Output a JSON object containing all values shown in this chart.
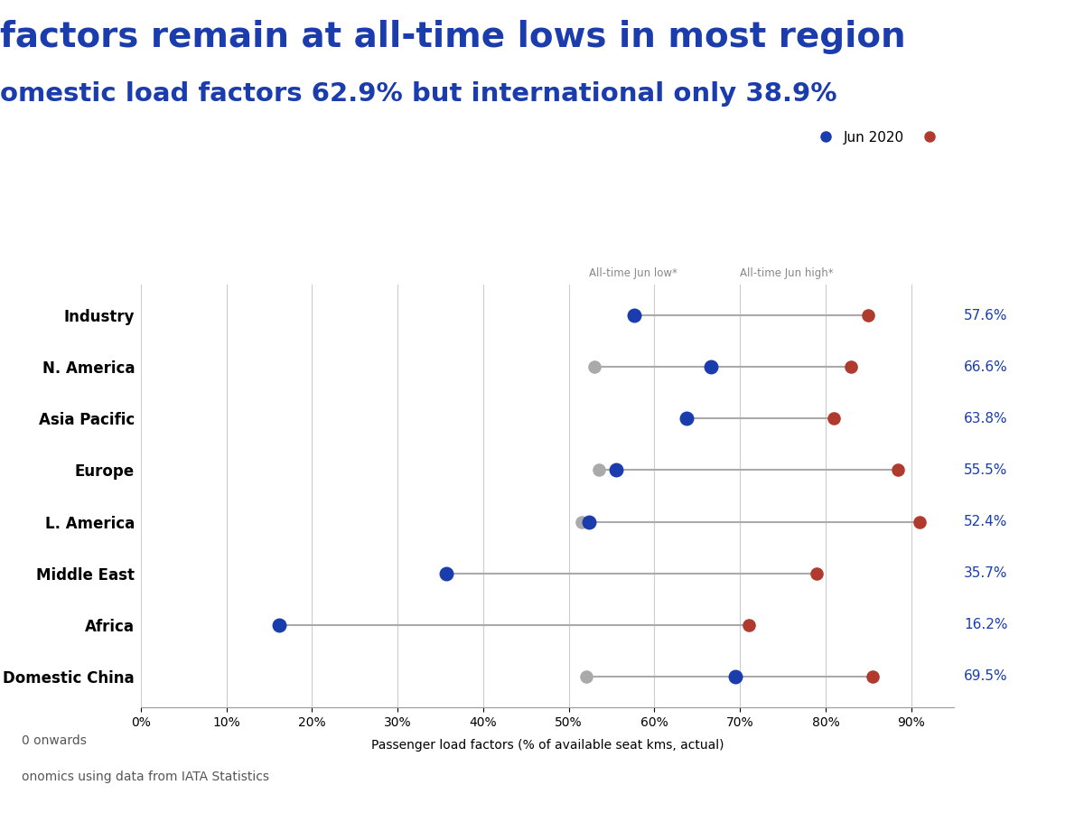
{
  "title_line1": "factors remain at all-time lows in most region",
  "title_line2": "omestic load factors 62.9% but international only 38.9%",
  "xlabel": "Passenger load factors (% of available seat kms, actual)",
  "footnote1": "0 onwards",
  "footnote2": "onomics using data from IATA Statistics",
  "legend_blue": "Jun 2020",
  "categories": [
    "Industry",
    "N. America",
    "Asia Pacific",
    "Europe",
    "L. America",
    "Middle East",
    "Africa",
    "Domestic China"
  ],
  "jun2020": [
    57.6,
    66.6,
    63.8,
    55.5,
    52.4,
    35.7,
    16.2,
    69.5
  ],
  "alltime_low": [
    57.6,
    53.0,
    63.8,
    53.5,
    51.5,
    35.7,
    16.2,
    52.0
  ],
  "alltime_high": [
    85.0,
    83.0,
    81.0,
    88.5,
    91.0,
    79.0,
    71.0,
    85.5
  ],
  "right_labels": [
    "57.6%",
    "66.6%",
    "63.8%",
    "55.5%",
    "52.4%",
    "35.7%",
    "16.2%",
    "69.5%"
  ],
  "annotation_low_text": "All-time Jun low*",
  "annotation_high_text": "All-time Jun high*",
  "xlim": [
    0.0,
    0.95
  ],
  "xticks": [
    0.0,
    0.1,
    0.2,
    0.3,
    0.4,
    0.5,
    0.6,
    0.7,
    0.8,
    0.9
  ],
  "xtick_labels": [
    "0%",
    "10%",
    "20%",
    "30%",
    "40%",
    "50%",
    "60%",
    "70%",
    "80%",
    "90%"
  ],
  "color_blue": "#1a3cad",
  "color_red": "#b03a2e",
  "color_gray": "#aaaaaa",
  "color_line": "#aaaaaa",
  "background": "#ffffff",
  "title_color": "#1a3cad",
  "label_color_blue": "#1a3cad",
  "label_color_gray": "#888888"
}
